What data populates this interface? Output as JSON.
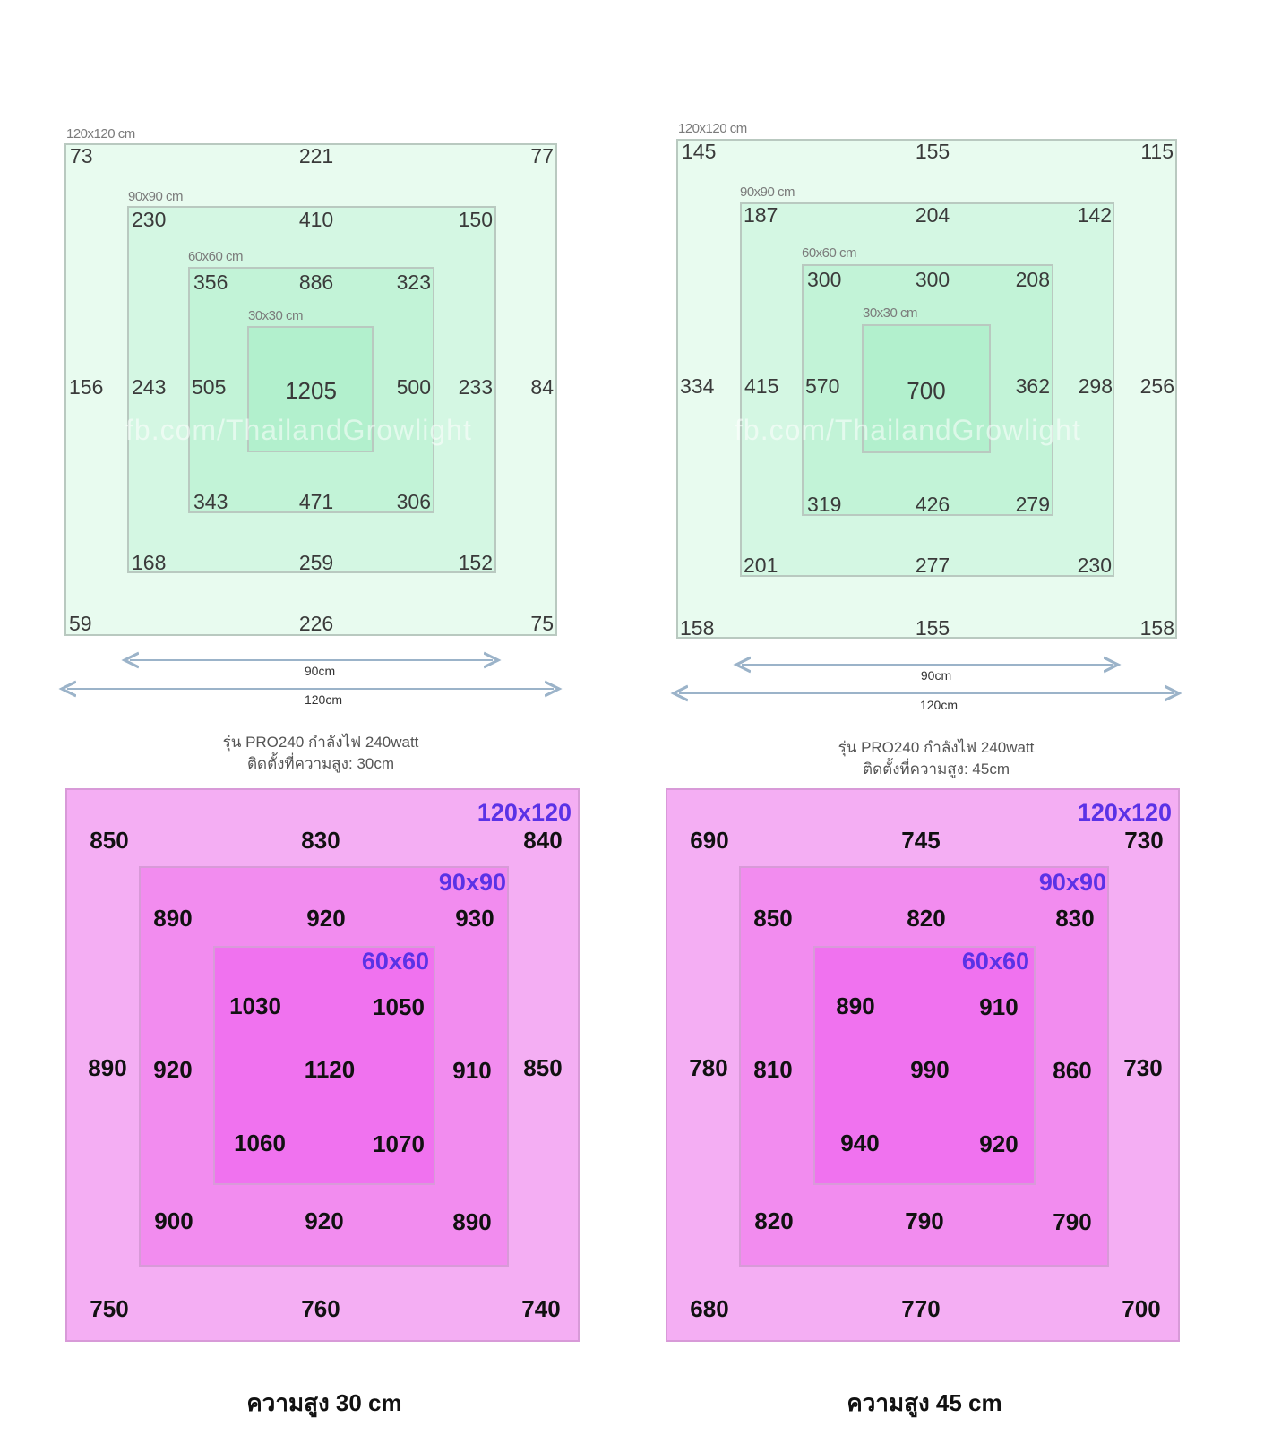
{
  "green_left": {
    "labels": {
      "s120": "120x120 cm",
      "s90": "90x90 cm",
      "s60": "60x60 cm",
      "s30": "30x30 cm"
    },
    "outer": {
      "tl": "73",
      "tm": "221",
      "tr": "77",
      "ml": "156",
      "mr": "84",
      "bl": "59",
      "bm": "226",
      "br": "75"
    },
    "r90": {
      "tl": "230",
      "tm": "410",
      "tr": "150",
      "ml": "243",
      "mr": "233",
      "bl": "168",
      "bm": "259",
      "br": "152"
    },
    "r60": {
      "tl": "356",
      "tm": "886",
      "tr": "323",
      "ml": "505",
      "mr": "500",
      "bl": "343",
      "bm": "471",
      "br": "306"
    },
    "center": "1205",
    "watermark": "fb.com/ThailandGrowlight",
    "arrow90": "90cm",
    "arrow120": "120cm",
    "caption1": "รุ่น PRO240 กำลังไฟ 240watt",
    "caption2": "ติดตั้งที่ความสูง: 30cm"
  },
  "green_right": {
    "labels": {
      "s120": "120x120 cm",
      "s90": "90x90 cm",
      "s60": "60x60 cm",
      "s30": "30x30 cm"
    },
    "outer": {
      "tl": "145",
      "tm": "155",
      "tr": "115",
      "ml": "334",
      "mr": "256",
      "bl": "158",
      "bm": "155",
      "br": "158"
    },
    "r90": {
      "tl": "187",
      "tm": "204",
      "tr": "142",
      "ml": "415",
      "mr": "298",
      "bl": "201",
      "bm": "277",
      "br": "230"
    },
    "r60": {
      "tl": "300",
      "tm": "300",
      "tr": "208",
      "ml": "570",
      "mr": "362",
      "bl": "319",
      "bm": "426",
      "br": "279"
    },
    "center": "700",
    "watermark": "fb.com/ThailandGrowlight",
    "arrow90": "90cm",
    "arrow120": "120cm",
    "caption1": "รุ่น PRO240 กำลังไฟ 240watt",
    "caption2": "ติดตั้งที่ความสูง: 45cm"
  },
  "pink_left": {
    "labels": {
      "s120": "120x120",
      "s90": "90x90",
      "s60": "60x60"
    },
    "outer": {
      "tl": "850",
      "tm": "830",
      "tr": "840",
      "ml": "890",
      "mr": "850",
      "bl": "750",
      "bm": "760",
      "br": "740"
    },
    "r90": {
      "tl": "890",
      "tm": "920",
      "tr": "930",
      "ml": "920",
      "mr": "910",
      "bl": "900",
      "bm": "920",
      "br": "890"
    },
    "r60": {
      "tl": "1030",
      "tr": "1050",
      "c": "1120",
      "bl": "1060",
      "br": "1070"
    },
    "heading": "ความสูง 30 cm"
  },
  "pink_right": {
    "labels": {
      "s120": "120x120",
      "s90": "90x90",
      "s60": "60x60"
    },
    "outer": {
      "tl": "690",
      "tm": "745",
      "tr": "730",
      "ml": "780",
      "mr": "730",
      "bl": "680",
      "bm": "770",
      "br": "700"
    },
    "r90": {
      "tl": "850",
      "tm": "820",
      "tr": "830",
      "ml": "810",
      "mr": "860",
      "bl": "820",
      "bm": "790",
      "br": "790"
    },
    "r60": {
      "tl": "890",
      "tr": "910",
      "c": "990",
      "bl": "940",
      "br": "920"
    },
    "heading": "ความสูง 45 cm"
  }
}
